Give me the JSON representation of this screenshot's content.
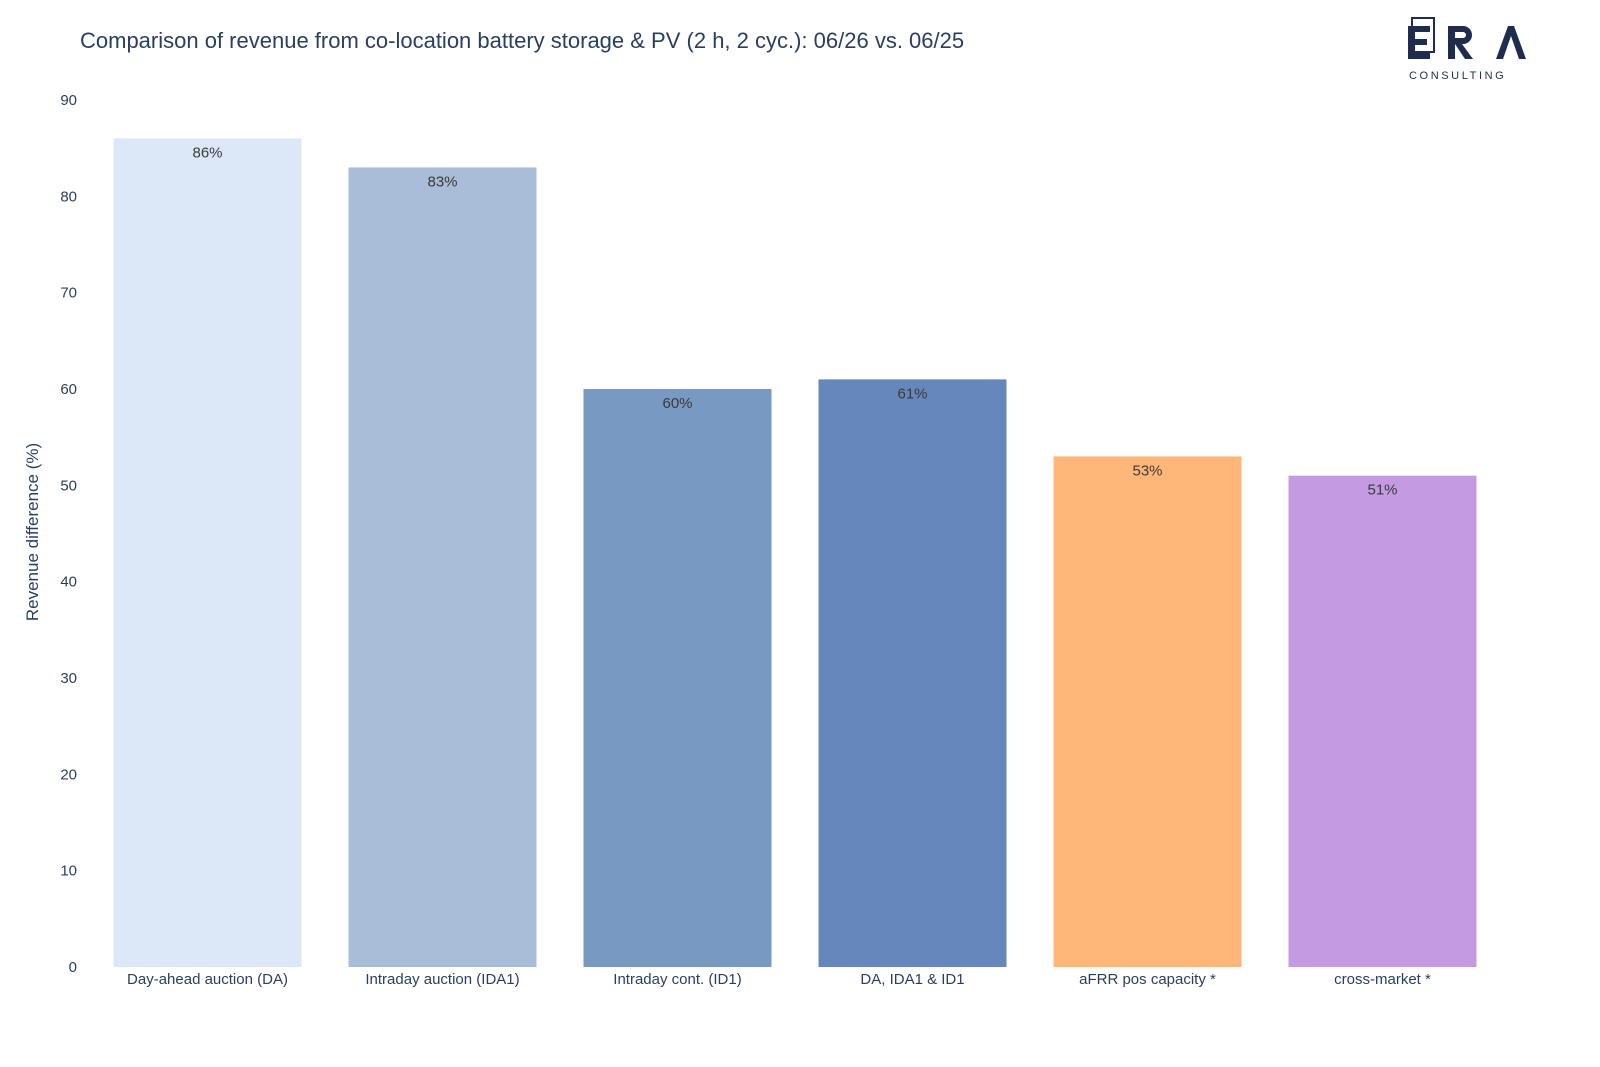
{
  "chart_data": {
    "type": "bar",
    "title": "Comparison of revenue from co-location battery storage & PV (2 h, 2 cyc.): 06/26 vs. 06/25",
    "ylabel": "Revenue difference (%)",
    "xlabel": "",
    "ylim": [
      0,
      90
    ],
    "yticks": [
      0,
      10,
      20,
      30,
      40,
      50,
      60,
      70,
      80,
      90
    ],
    "grid": false,
    "categories": [
      "Day-ahead auction (DA)",
      "Intraday auction (IDA1)",
      "Intraday cont. (ID1)",
      "DA, IDA1 & ID1",
      "aFRR pos capacity *",
      "cross-market *"
    ],
    "values": [
      86,
      83,
      60,
      61,
      53,
      51
    ],
    "data_labels": [
      "86%",
      "83%",
      "60%",
      "61%",
      "53%",
      "51%"
    ],
    "bar_colors": [
      "#dce8f7",
      "#aabdd8",
      "#789ac2",
      "#6587bc",
      "#ffb679",
      "#c49be3"
    ]
  },
  "logo": {
    "wordmark": "ERA",
    "tagline": "CONSULTING",
    "color": "#1e2d4d"
  }
}
